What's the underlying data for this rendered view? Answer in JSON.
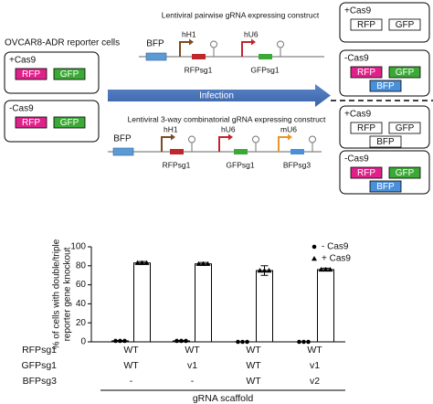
{
  "diagram": {
    "left_title": "OVCAR8-ADR reporter cells",
    "left_boxes": [
      {
        "label": "+Cas9",
        "chips": [
          {
            "text": "RFP",
            "color": "#e0218a"
          },
          {
            "text": "GFP",
            "color": "#3aa935"
          }
        ]
      },
      {
        "label": "-Cas9",
        "chips": [
          {
            "text": "RFP",
            "color": "#e0218a"
          },
          {
            "text": "GFP",
            "color": "#3aa935"
          }
        ]
      }
    ],
    "arrow_label": "Infection",
    "constructs": [
      {
        "title": "Lentiviral pairwise gRNA expressing construct",
        "marker": "BFP",
        "units": [
          {
            "promoter": "hH1",
            "promoter_color": "#7b4a1e",
            "guide": "RFPsg1",
            "guide_color": "#c0262d"
          },
          {
            "promoter": "hU6",
            "promoter_color": "#c0262d",
            "guide": "GFPsg1",
            "guide_color": "#3aa935"
          }
        ]
      },
      {
        "title": "Lentiviral 3-way combinatorial gRNA expressing construct",
        "marker": "BFP",
        "units": [
          {
            "promoter": "hH1",
            "promoter_color": "#7b4a1e",
            "guide": "RFPsg1",
            "guide_color": "#c0262d"
          },
          {
            "promoter": "hU6",
            "promoter_color": "#c0262d",
            "guide": "GFPsg1",
            "guide_color": "#3aa935"
          },
          {
            "promoter": "mU6",
            "promoter_color": "#e8962b",
            "guide": "BFPsg3",
            "guide_color": "#4a90d9"
          }
        ]
      }
    ],
    "right_boxes": [
      {
        "label": "+Cas9",
        "chips": [
          {
            "text": "RFP",
            "color": "#ffffff"
          },
          {
            "text": "GFP",
            "color": "#ffffff"
          }
        ]
      },
      {
        "label": "-Cas9",
        "chips": [
          {
            "text": "RFP",
            "color": "#e0218a"
          },
          {
            "text": "GFP",
            "color": "#3aa935"
          },
          {
            "text": "BFP",
            "color": "#4a90d9"
          }
        ]
      },
      {
        "label": "+Cas9",
        "chips": [
          {
            "text": "RFP",
            "color": "#ffffff"
          },
          {
            "text": "GFP",
            "color": "#ffffff"
          },
          {
            "text": "BFP",
            "color": "#ffffff"
          }
        ]
      },
      {
        "label": "-Cas9",
        "chips": [
          {
            "text": "RFP",
            "color": "#e0218a"
          },
          {
            "text": "GFP",
            "color": "#3aa935"
          },
          {
            "text": "BFP",
            "color": "#4a90d9"
          }
        ]
      }
    ]
  },
  "chart_data": {
    "type": "bar",
    "ylabel": [
      "% of cells with double/triple",
      "reporter gene knockout"
    ],
    "xlabel": "gRNA scaffold",
    "ylim": [
      0,
      100
    ],
    "yticks": [
      0,
      20,
      40,
      60,
      80,
      100
    ],
    "series": [
      {
        "name": "- Cas9",
        "marker": "circle",
        "color": "#ffffff",
        "values": [
          1,
          1,
          0,
          0
        ],
        "errors": [
          0.5,
          0.5,
          0,
          0
        ]
      },
      {
        "name": "+ Cas9",
        "marker": "triangle",
        "color": "#ffffff",
        "values": [
          83,
          82,
          75,
          76
        ],
        "errors": [
          1.5,
          1.5,
          5,
          1.5
        ]
      }
    ],
    "table": [
      {
        "label": "RFPsg1",
        "values": [
          "WT",
          "WT",
          "WT",
          "WT"
        ]
      },
      {
        "label": "GFPsg1",
        "values": [
          "WT",
          "v1",
          "WT",
          "v1"
        ]
      },
      {
        "label": "BFPsg3",
        "values": [
          "-",
          "-",
          "WT",
          "v2"
        ]
      }
    ]
  }
}
